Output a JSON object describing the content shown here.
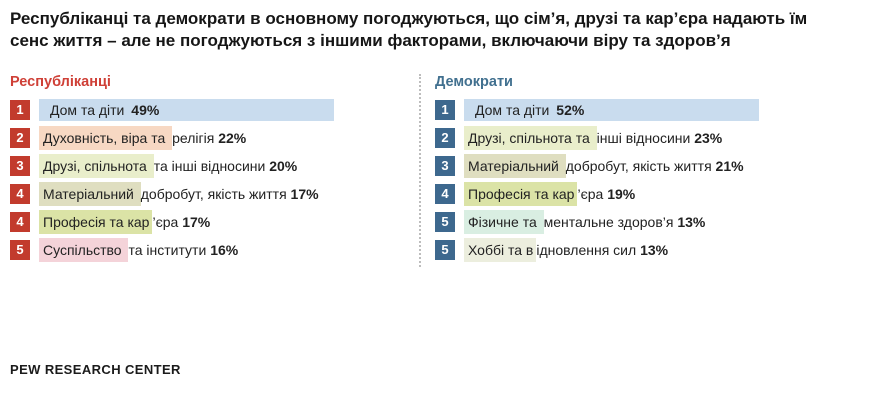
{
  "title": "Республіканці та демократи в основному погоджуються, що сім’я, друзі та кар’єра надають їм сенс життя – але не погоджуються з іншими факторами, включаючи віру та здоров’я",
  "footer": "PEW RESEARCH CENTER",
  "colors": {
    "republican_accent": "#c23b2d",
    "republican_header": "#cf4037",
    "democrat_accent": "#3d688e",
    "democrat_header": "#41708f",
    "divider_gray": "#bdbdbd",
    "highlight_home_blue": "#c9dcee",
    "highlight_faith_peach": "#f7d8c3",
    "highlight_friends_green": "#e9eecb",
    "highlight_material_khaki": "#dfdec0",
    "highlight_career_green": "#dbe3a6",
    "highlight_society_pink": "#f4d3d9",
    "highlight_health_mint": "#d9eee2",
    "highlight_hobby_cream": "#eceede"
  },
  "columns": [
    {
      "id": "republicans",
      "label": "Республіканці",
      "accent": "#c23b2d",
      "header_color": "#cf4037",
      "items": [
        {
          "rank": "1",
          "highlight": "Дом та діти ",
          "rest": "",
          "percent": "49%",
          "highlight_color": "#c9dcee",
          "full_bar": true
        },
        {
          "rank": "2",
          "highlight": "Духовність, віра та ",
          "rest": "релігія ",
          "percent": "22%",
          "highlight_color": "#f7d8c3",
          "full_bar": false
        },
        {
          "rank": "3",
          "highlight": "Друзі, спільнота ",
          "rest": "та інші відносини ",
          "percent": "20%",
          "highlight_color": "#e9eecb",
          "full_bar": false
        },
        {
          "rank": "4",
          "highlight": "Матеріальний ",
          "rest": "добробут, якість життя ",
          "percent": "17%",
          "highlight_color": "#dfdec0",
          "full_bar": false
        },
        {
          "rank": "4",
          "highlight": "Професія та кар",
          "rest": "’єра ",
          "percent": "17%",
          "highlight_color": "#dbe3a6",
          "full_bar": false
        },
        {
          "rank": "5",
          "highlight": "Суспільство ",
          "rest": "та інститути ",
          "percent": "16%",
          "highlight_color": "#f4d3d9",
          "full_bar": false
        }
      ]
    },
    {
      "id": "democrats",
      "label": "Демократи",
      "accent": "#3d688e",
      "header_color": "#41708f",
      "items": [
        {
          "rank": "1",
          "highlight": "Дом та діти ",
          "rest": "",
          "percent": "52%",
          "highlight_color": "#c9dcee",
          "full_bar": true
        },
        {
          "rank": "2",
          "highlight": "Друзі, спільнота та ",
          "rest": "інші відносини ",
          "percent": "23%",
          "highlight_color": "#e9eecb",
          "full_bar": false
        },
        {
          "rank": "3",
          "highlight": "Матеріальний ",
          "rest": "добробут, якість життя ",
          "percent": "21%",
          "highlight_color": "#dfdec0",
          "full_bar": false
        },
        {
          "rank": "4",
          "highlight": "Професія та кар",
          "rest": "’єра ",
          "percent": "19%",
          "highlight_color": "#dbe3a6",
          "full_bar": false
        },
        {
          "rank": "5",
          "highlight": "Фізичне та ",
          "rest": "ментальне здоров’я ",
          "percent": "13%",
          "highlight_color": "#d9eee2",
          "full_bar": false
        },
        {
          "rank": "5",
          "highlight": "Хоббі та в",
          "rest": "ідновлення сил ",
          "percent": "13%",
          "highlight_color": "#eceede",
          "full_bar": false
        }
      ]
    }
  ],
  "chart_data": {
    "type": "table",
    "title": "Республіканці та демократи в основному погоджуються, що сім’я, друзі та кар’єра надають їм сенс життя – але не погоджуються з іншими факторами, включаючи віру та здоров’я",
    "legend_position": "none",
    "groups": [
      {
        "name": "Республіканці",
        "items": [
          {
            "rank": 1,
            "label": "Дом та діти",
            "percent": 49
          },
          {
            "rank": 2,
            "label": "Духовність, віра та релігія",
            "percent": 22
          },
          {
            "rank": 3,
            "label": "Друзі, спільнота та інші відносини",
            "percent": 20
          },
          {
            "rank": 4,
            "label": "Матеріальний добробут, якість життя",
            "percent": 17
          },
          {
            "rank": 4,
            "label": "Професія та кар’єра",
            "percent": 17
          },
          {
            "rank": 5,
            "label": "Суспільство та інститути",
            "percent": 16
          }
        ]
      },
      {
        "name": "Демократи",
        "items": [
          {
            "rank": 1,
            "label": "Дом та діти",
            "percent": 52
          },
          {
            "rank": 2,
            "label": "Друзі, спільнота та інші відносини",
            "percent": 23
          },
          {
            "rank": 3,
            "label": "Матеріальний добробут, якість життя",
            "percent": 21
          },
          {
            "rank": 4,
            "label": "Професія та кар’єра",
            "percent": 19
          },
          {
            "rank": 5,
            "label": "Фізичне та ментальне здоров’я",
            "percent": 13
          },
          {
            "rank": 5,
            "label": "Хоббі та відновлення сил",
            "percent": 13
          }
        ]
      }
    ],
    "source": "PEW RESEARCH CENTER"
  }
}
